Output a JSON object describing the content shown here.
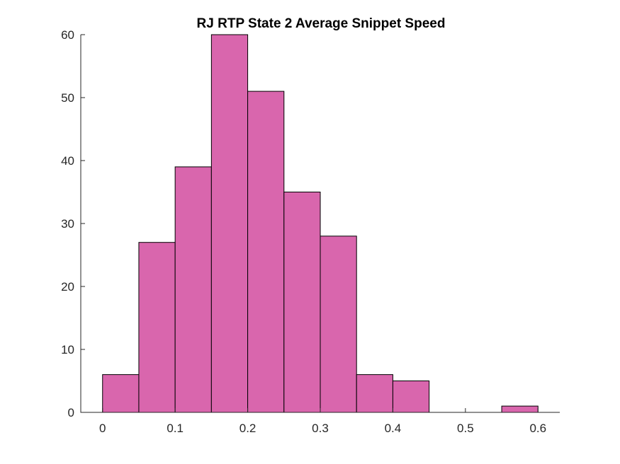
{
  "chart_data": {
    "type": "bar",
    "title": "RJ  RTP State 2 Average Snippet Speed",
    "xlabel": "",
    "ylabel": "",
    "bin_edges": [
      0,
      0.05,
      0.1,
      0.15,
      0.2,
      0.25,
      0.3,
      0.35,
      0.4,
      0.45,
      0.5,
      0.55,
      0.6
    ],
    "values": [
      6,
      27,
      39,
      60,
      51,
      35,
      28,
      6,
      5,
      0,
      0,
      1
    ],
    "xlim": [
      -0.03,
      0.63
    ],
    "ylim": [
      0,
      60
    ],
    "xticks": [
      0,
      0.1,
      0.2,
      0.3,
      0.4,
      0.5,
      0.6
    ],
    "xtick_labels": [
      "0",
      "0.1",
      "0.2",
      "0.3",
      "0.4",
      "0.5",
      "0.6"
    ],
    "yticks": [
      0,
      10,
      20,
      30,
      40,
      50,
      60
    ],
    "ytick_labels": [
      "0",
      "10",
      "20",
      "30",
      "40",
      "50",
      "60"
    ],
    "bar_color": "#d966ad",
    "grid": false,
    "legend": "none"
  }
}
